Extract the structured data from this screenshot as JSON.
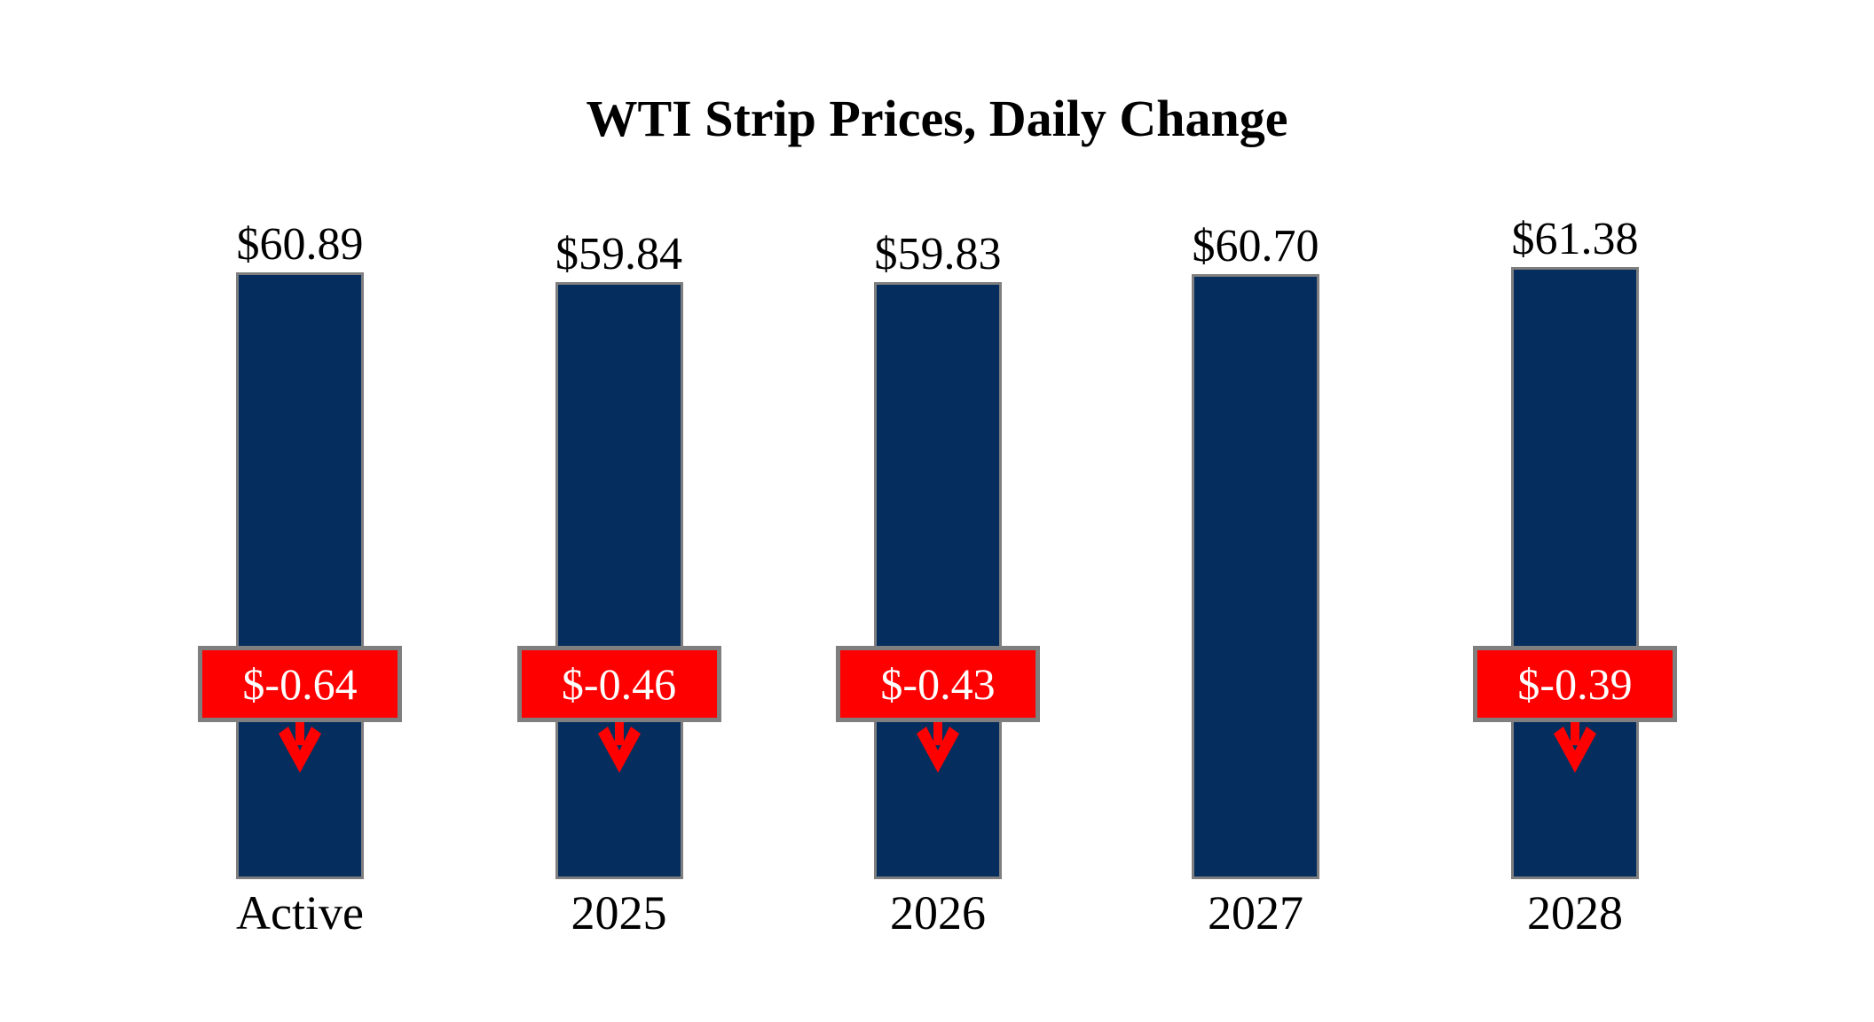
{
  "title": "WTI Strip Prices, Daily Change",
  "chart_data": {
    "type": "bar",
    "title": "WTI Strip Prices, Daily Change",
    "categories": [
      "Active",
      "2025",
      "2026",
      "2027",
      "2028"
    ],
    "series": [
      {
        "name": "WTI Strip Price",
        "values": [
          60.89,
          59.84,
          59.83,
          60.7,
          61.38
        ]
      },
      {
        "name": "Daily Change",
        "values": [
          -0.64,
          -0.46,
          -0.43,
          null,
          -0.39
        ]
      }
    ],
    "value_labels": [
      "$60.89",
      "$59.84",
      "$59.83",
      "$60.70",
      "$61.38"
    ],
    "change_labels": [
      "$-0.64",
      "$-0.46",
      "$-0.43",
      null,
      "$-0.39"
    ],
    "xlabel": "",
    "ylabel": "",
    "ylim": [
      0,
      61.38
    ],
    "grid": false,
    "legend": false,
    "axes_hidden": true,
    "icons": {
      "change_direction": "down-arrow-icon"
    },
    "colors": {
      "bar_fill": "#052E5E",
      "bar_border": "#7F7F7F",
      "change_badge_fill": "#FE0000",
      "change_badge_border": "#7F7F7F",
      "change_text": "#FFFFFF",
      "arrow": "#FE0000",
      "text": "#000000",
      "background": "#FFFFFF"
    }
  }
}
